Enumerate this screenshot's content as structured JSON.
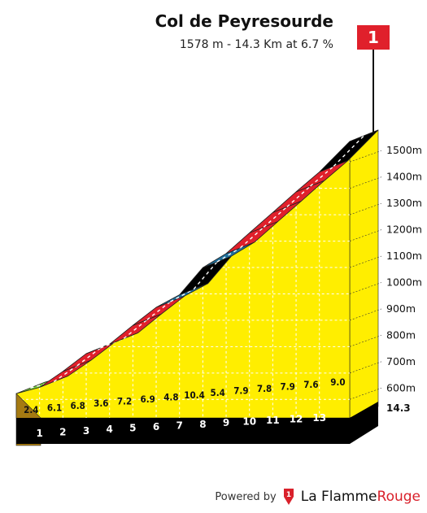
{
  "header": {
    "title": "Col de Peyresourde",
    "subtitle": "1578 m - 14.3 Km at 6.7 %"
  },
  "category_flag": {
    "label": "1",
    "color": "#e0202b"
  },
  "footer": {
    "powered_label": "Powered by",
    "brand_part1": "La Flamme",
    "brand_part2": "Rouge"
  },
  "colors": {
    "fill": "#ffee00",
    "base": "#000000",
    "soil": "#a57a12",
    "red": "#e0202b",
    "green": "#7ad13b",
    "blue": "#1f6e9a",
    "black": "#000000"
  },
  "chart_data": {
    "type": "area",
    "title": "Col de Peyresourde",
    "x_unit": "km",
    "y_unit": "m",
    "xlim": [
      0,
      14.3
    ],
    "ylim": [
      530,
      1578
    ],
    "y_ticks": [
      "600m",
      "700m",
      "800m",
      "900m",
      "1000m",
      "1100m",
      "1200m",
      "1300m",
      "1400m",
      "1500m"
    ],
    "y_tick_values": [
      600,
      700,
      800,
      900,
      1000,
      1100,
      1200,
      1300,
      1400,
      1500
    ],
    "km_labels": [
      "1",
      "2",
      "3",
      "4",
      "5",
      "6",
      "7",
      "8",
      "9",
      "10",
      "11",
      "12",
      "13"
    ],
    "total_distance_label": "14.3",
    "segments": [
      {
        "from_km": 0,
        "to_km": 1,
        "gradient": "2.4",
        "color": "green"
      },
      {
        "from_km": 1,
        "to_km": 2,
        "gradient": "6.1",
        "color": "red"
      },
      {
        "from_km": 2,
        "to_km": 3,
        "gradient": "6.8",
        "color": "red"
      },
      {
        "from_km": 3,
        "to_km": 4,
        "gradient": "3.6",
        "color": "green"
      },
      {
        "from_km": 4,
        "to_km": 5,
        "gradient": "7.2",
        "color": "red"
      },
      {
        "from_km": 5,
        "to_km": 6,
        "gradient": "6.9",
        "color": "red"
      },
      {
        "from_km": 6,
        "to_km": 7,
        "gradient": "4.8",
        "color": "blue"
      },
      {
        "from_km": 7,
        "to_km": 8,
        "gradient": "10.4",
        "color": "black"
      },
      {
        "from_km": 8,
        "to_km": 9,
        "gradient": "5.4",
        "color": "blue"
      },
      {
        "from_km": 9,
        "to_km": 10,
        "gradient": "7.9",
        "color": "red"
      },
      {
        "from_km": 10,
        "to_km": 11,
        "gradient": "7.8",
        "color": "red"
      },
      {
        "from_km": 11,
        "to_km": 12,
        "gradient": "7.9",
        "color": "red"
      },
      {
        "from_km": 12,
        "to_km": 13,
        "gradient": "7.6",
        "color": "red"
      },
      {
        "from_km": 13,
        "to_km": 14.3,
        "gradient": "9.0",
        "color": "black"
      }
    ],
    "start_elevation": 622,
    "summit_elevation": 1578
  }
}
